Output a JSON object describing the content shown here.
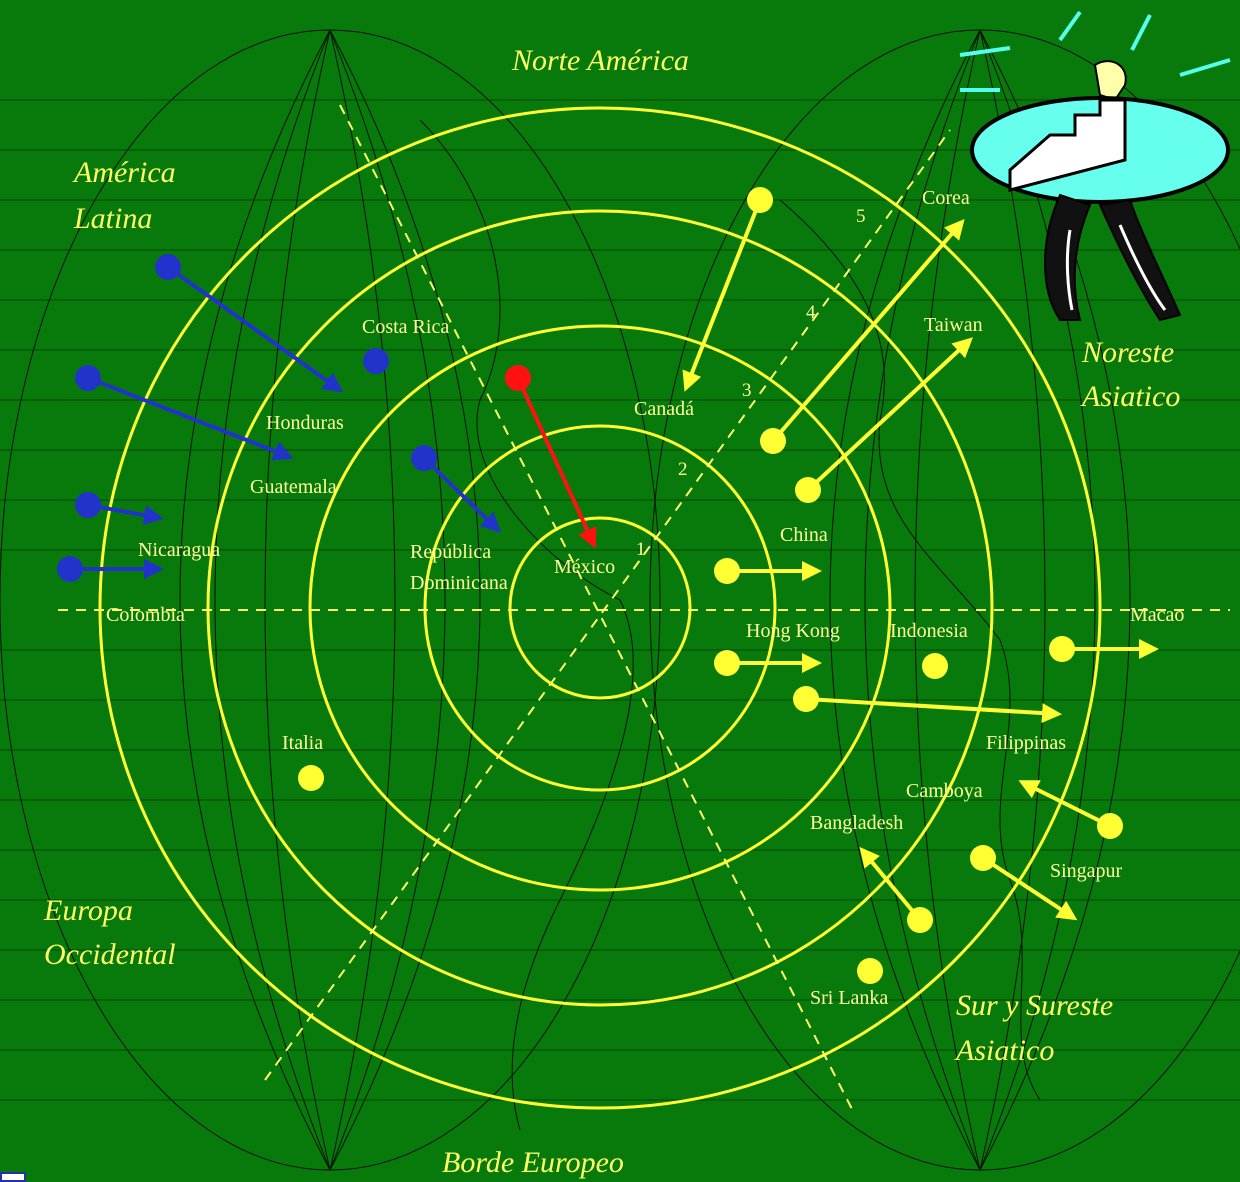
{
  "regions": {
    "north_america": "Norte América",
    "latin_america_1": "América",
    "latin_america_2": "Latina",
    "northeast_asia_1": "Noreste",
    "northeast_asia_2": "Asiatico",
    "western_europe_1": "Europa",
    "western_europe_2": "Occidental",
    "south_asia_1": "Sur y Sureste",
    "south_asia_2": "Asiatico",
    "european_border": "Borde Europeo"
  },
  "ring_numbers": [
    "1",
    "2",
    "3",
    "4",
    "5"
  ],
  "countries": {
    "mexico": "México",
    "costa_rica": "Costa Rica",
    "honduras": "Honduras",
    "guatemala": "Guatemala",
    "nicaragua": "Nicaragua",
    "colombia": "Colombia",
    "republica_dominicana_1": "República",
    "republica_dominicana_2": "Dominicana",
    "canada": "Canadá",
    "corea": "Corea",
    "taiwan": "Taiwan",
    "china": "China",
    "hong_kong": "Hong Kong",
    "indonesia": "Indonesia",
    "macao": "Macao",
    "filipinas": "Filippinas",
    "camboya": "Camboya",
    "bangladesh": "Bangladesh",
    "singapur": "Singapur",
    "sri_lanka": "Sri Lanka",
    "italia": "Italia"
  },
  "colors": {
    "background": "#087a0c",
    "rings": "#ffff33",
    "arrow_asia": "#ffff33",
    "arrow_latam": "#2233cc",
    "arrow_mexico": "#ff1111",
    "grid": "#000000"
  },
  "icons": [
    "figure-with-stairs-icon"
  ]
}
